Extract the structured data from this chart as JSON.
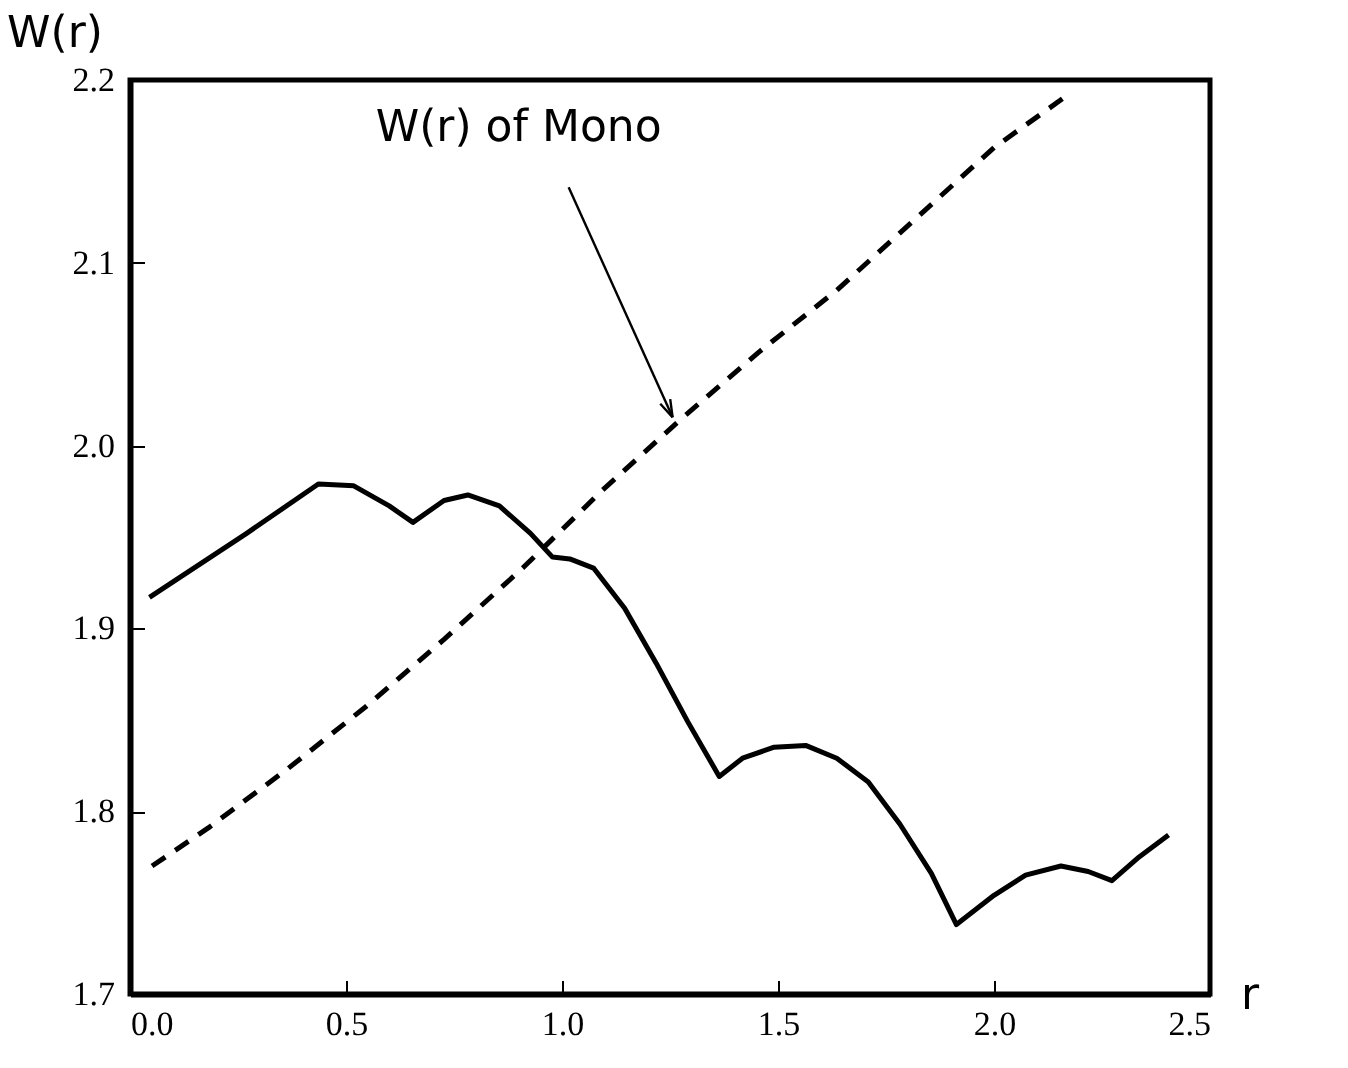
{
  "chart_data": {
    "type": "line",
    "xlabel": "r",
    "ylabel": "W(r)",
    "xlim": [
      0,
      2.5
    ],
    "xticks": [
      {
        "value": 0,
        "label": "0.0"
      },
      0.5,
      {
        "value": 1,
        "label": "1.0"
      },
      1.5,
      {
        "value": 2,
        "label": "2.0"
      },
      2.5
    ],
    "ylim": [
      1.7,
      2.2
    ],
    "yticks": [
      1.7,
      1.8,
      1.9,
      {
        "value": 2,
        "label": "2.0"
      },
      2.1,
      2.2
    ],
    "series": [
      {
        "color": "#000000",
        "line_style": "solid",
        "x": [
          0.045,
          0.27,
          0.436,
          0.518,
          0.6,
          0.655,
          0.727,
          0.782,
          0.855,
          0.927,
          0.978,
          1.018,
          1.073,
          1.145,
          1.218,
          1.291,
          1.364,
          1.418,
          1.491,
          1.564,
          1.636,
          1.709,
          1.782,
          1.855,
          1.913,
          2.0,
          2.073,
          2.155,
          2.218,
          2.273,
          2.336,
          2.404
        ],
        "values": [
          1.917,
          1.952,
          1.979,
          1.978,
          1.967,
          1.958,
          1.97,
          1.973,
          1.967,
          1.952,
          1.939,
          1.938,
          1.933,
          1.911,
          1.881,
          1.849,
          1.819,
          1.829,
          1.835,
          1.836,
          1.829,
          1.816,
          1.793,
          1.766,
          1.738,
          1.754,
          1.765,
          1.77,
          1.767,
          1.762,
          1.775,
          1.787
        ]
      },
      {
        "color": "#000000",
        "line_style": "dashed",
        "x": [
          0.051,
          0.182,
          0.364,
          0.545,
          0.727,
          0.909,
          1.091,
          1.273,
          1.455,
          1.636,
          1.818,
          2.0,
          2.16
        ],
        "values": [
          1.77,
          1.791,
          1.823,
          1.857,
          1.894,
          1.933,
          1.975,
          2.014,
          2.051,
          2.085,
          2.124,
          2.163,
          2.19
        ]
      }
    ],
    "annotations": [
      {
        "text": "W(r) of Mono",
        "x": 1.27,
        "y": 2.01
      }
    ]
  }
}
